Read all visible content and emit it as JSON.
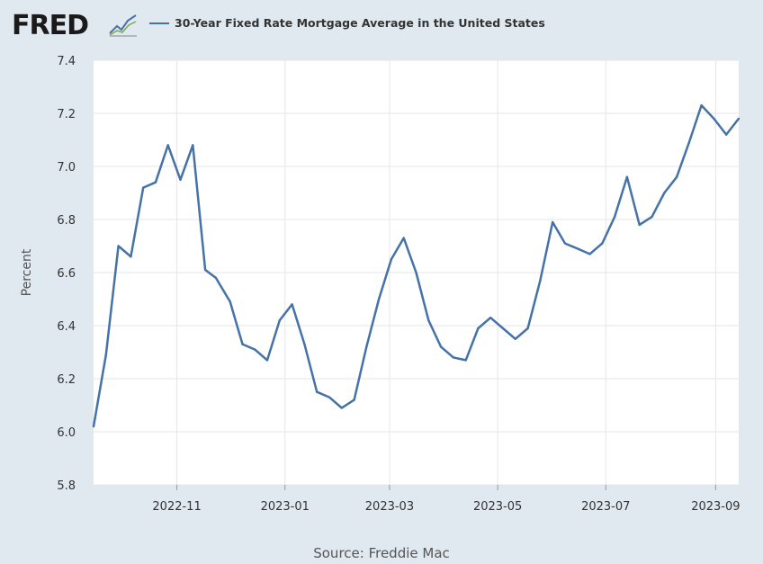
{
  "header": {
    "logo_text": "FRED",
    "legend_label": "30-Year Fixed Rate Mortgage Average in the United States"
  },
  "source": "Source: Freddie Mac",
  "colors": {
    "line": "#4572a7",
    "background": "#e1e9f0",
    "plot": "#ffffff",
    "grid": "#e6e6e6"
  },
  "chart_data": {
    "type": "line",
    "ylabel": "Percent",
    "xlabel": "",
    "ylim": [
      5.8,
      7.4
    ],
    "yticks": [
      "5.8",
      "6.0",
      "6.2",
      "6.4",
      "6.6",
      "6.8",
      "7.0",
      "7.2",
      "7.4"
    ],
    "xlim": [
      "2022-09-15",
      "2023-09-14"
    ],
    "xticks": [
      "2022-11",
      "2023-01",
      "2023-03",
      "2023-05",
      "2023-07",
      "2023-09"
    ],
    "grid": true,
    "legend": "top-left",
    "series": [
      {
        "name": "30-Year Fixed Rate Mortgage Average in the United States",
        "color": "#4572a7",
        "points": [
          [
            "2022-09-15",
            6.02
          ],
          [
            "2022-09-22",
            6.29
          ],
          [
            "2022-09-29",
            6.7
          ],
          [
            "2022-10-06",
            6.66
          ],
          [
            "2022-10-13",
            6.92
          ],
          [
            "2022-10-20",
            6.94
          ],
          [
            "2022-10-27",
            7.08
          ],
          [
            "2022-11-03",
            6.95
          ],
          [
            "2022-11-10",
            7.08
          ],
          [
            "2022-11-17",
            6.61
          ],
          [
            "2022-11-23",
            6.58
          ],
          [
            "2022-12-01",
            6.49
          ],
          [
            "2022-12-08",
            6.33
          ],
          [
            "2022-12-15",
            6.31
          ],
          [
            "2022-12-22",
            6.27
          ],
          [
            "2022-12-29",
            6.42
          ],
          [
            "2023-01-05",
            6.48
          ],
          [
            "2023-01-12",
            6.33
          ],
          [
            "2023-01-19",
            6.15
          ],
          [
            "2023-01-26",
            6.13
          ],
          [
            "2023-02-02",
            6.09
          ],
          [
            "2023-02-09",
            6.12
          ],
          [
            "2023-02-16",
            6.32
          ],
          [
            "2023-02-23",
            6.5
          ],
          [
            "2023-03-02",
            6.65
          ],
          [
            "2023-03-09",
            6.73
          ],
          [
            "2023-03-16",
            6.6
          ],
          [
            "2023-03-23",
            6.42
          ],
          [
            "2023-03-30",
            6.32
          ],
          [
            "2023-04-06",
            6.28
          ],
          [
            "2023-04-13",
            6.27
          ],
          [
            "2023-04-20",
            6.39
          ],
          [
            "2023-04-27",
            6.43
          ],
          [
            "2023-05-04",
            6.39
          ],
          [
            "2023-05-11",
            6.35
          ],
          [
            "2023-05-18",
            6.39
          ],
          [
            "2023-05-25",
            6.57
          ],
          [
            "2023-06-01",
            6.79
          ],
          [
            "2023-06-08",
            6.71
          ],
          [
            "2023-06-15",
            6.69
          ],
          [
            "2023-06-22",
            6.67
          ],
          [
            "2023-06-29",
            6.71
          ],
          [
            "2023-07-06",
            6.81
          ],
          [
            "2023-07-13",
            6.96
          ],
          [
            "2023-07-20",
            6.78
          ],
          [
            "2023-07-27",
            6.81
          ],
          [
            "2023-08-03",
            6.9
          ],
          [
            "2023-08-10",
            6.96
          ],
          [
            "2023-08-17",
            7.09
          ],
          [
            "2023-08-24",
            7.23
          ],
          [
            "2023-08-31",
            7.18
          ],
          [
            "2023-09-07",
            7.12
          ],
          [
            "2023-09-14",
            7.18
          ]
        ]
      }
    ]
  }
}
